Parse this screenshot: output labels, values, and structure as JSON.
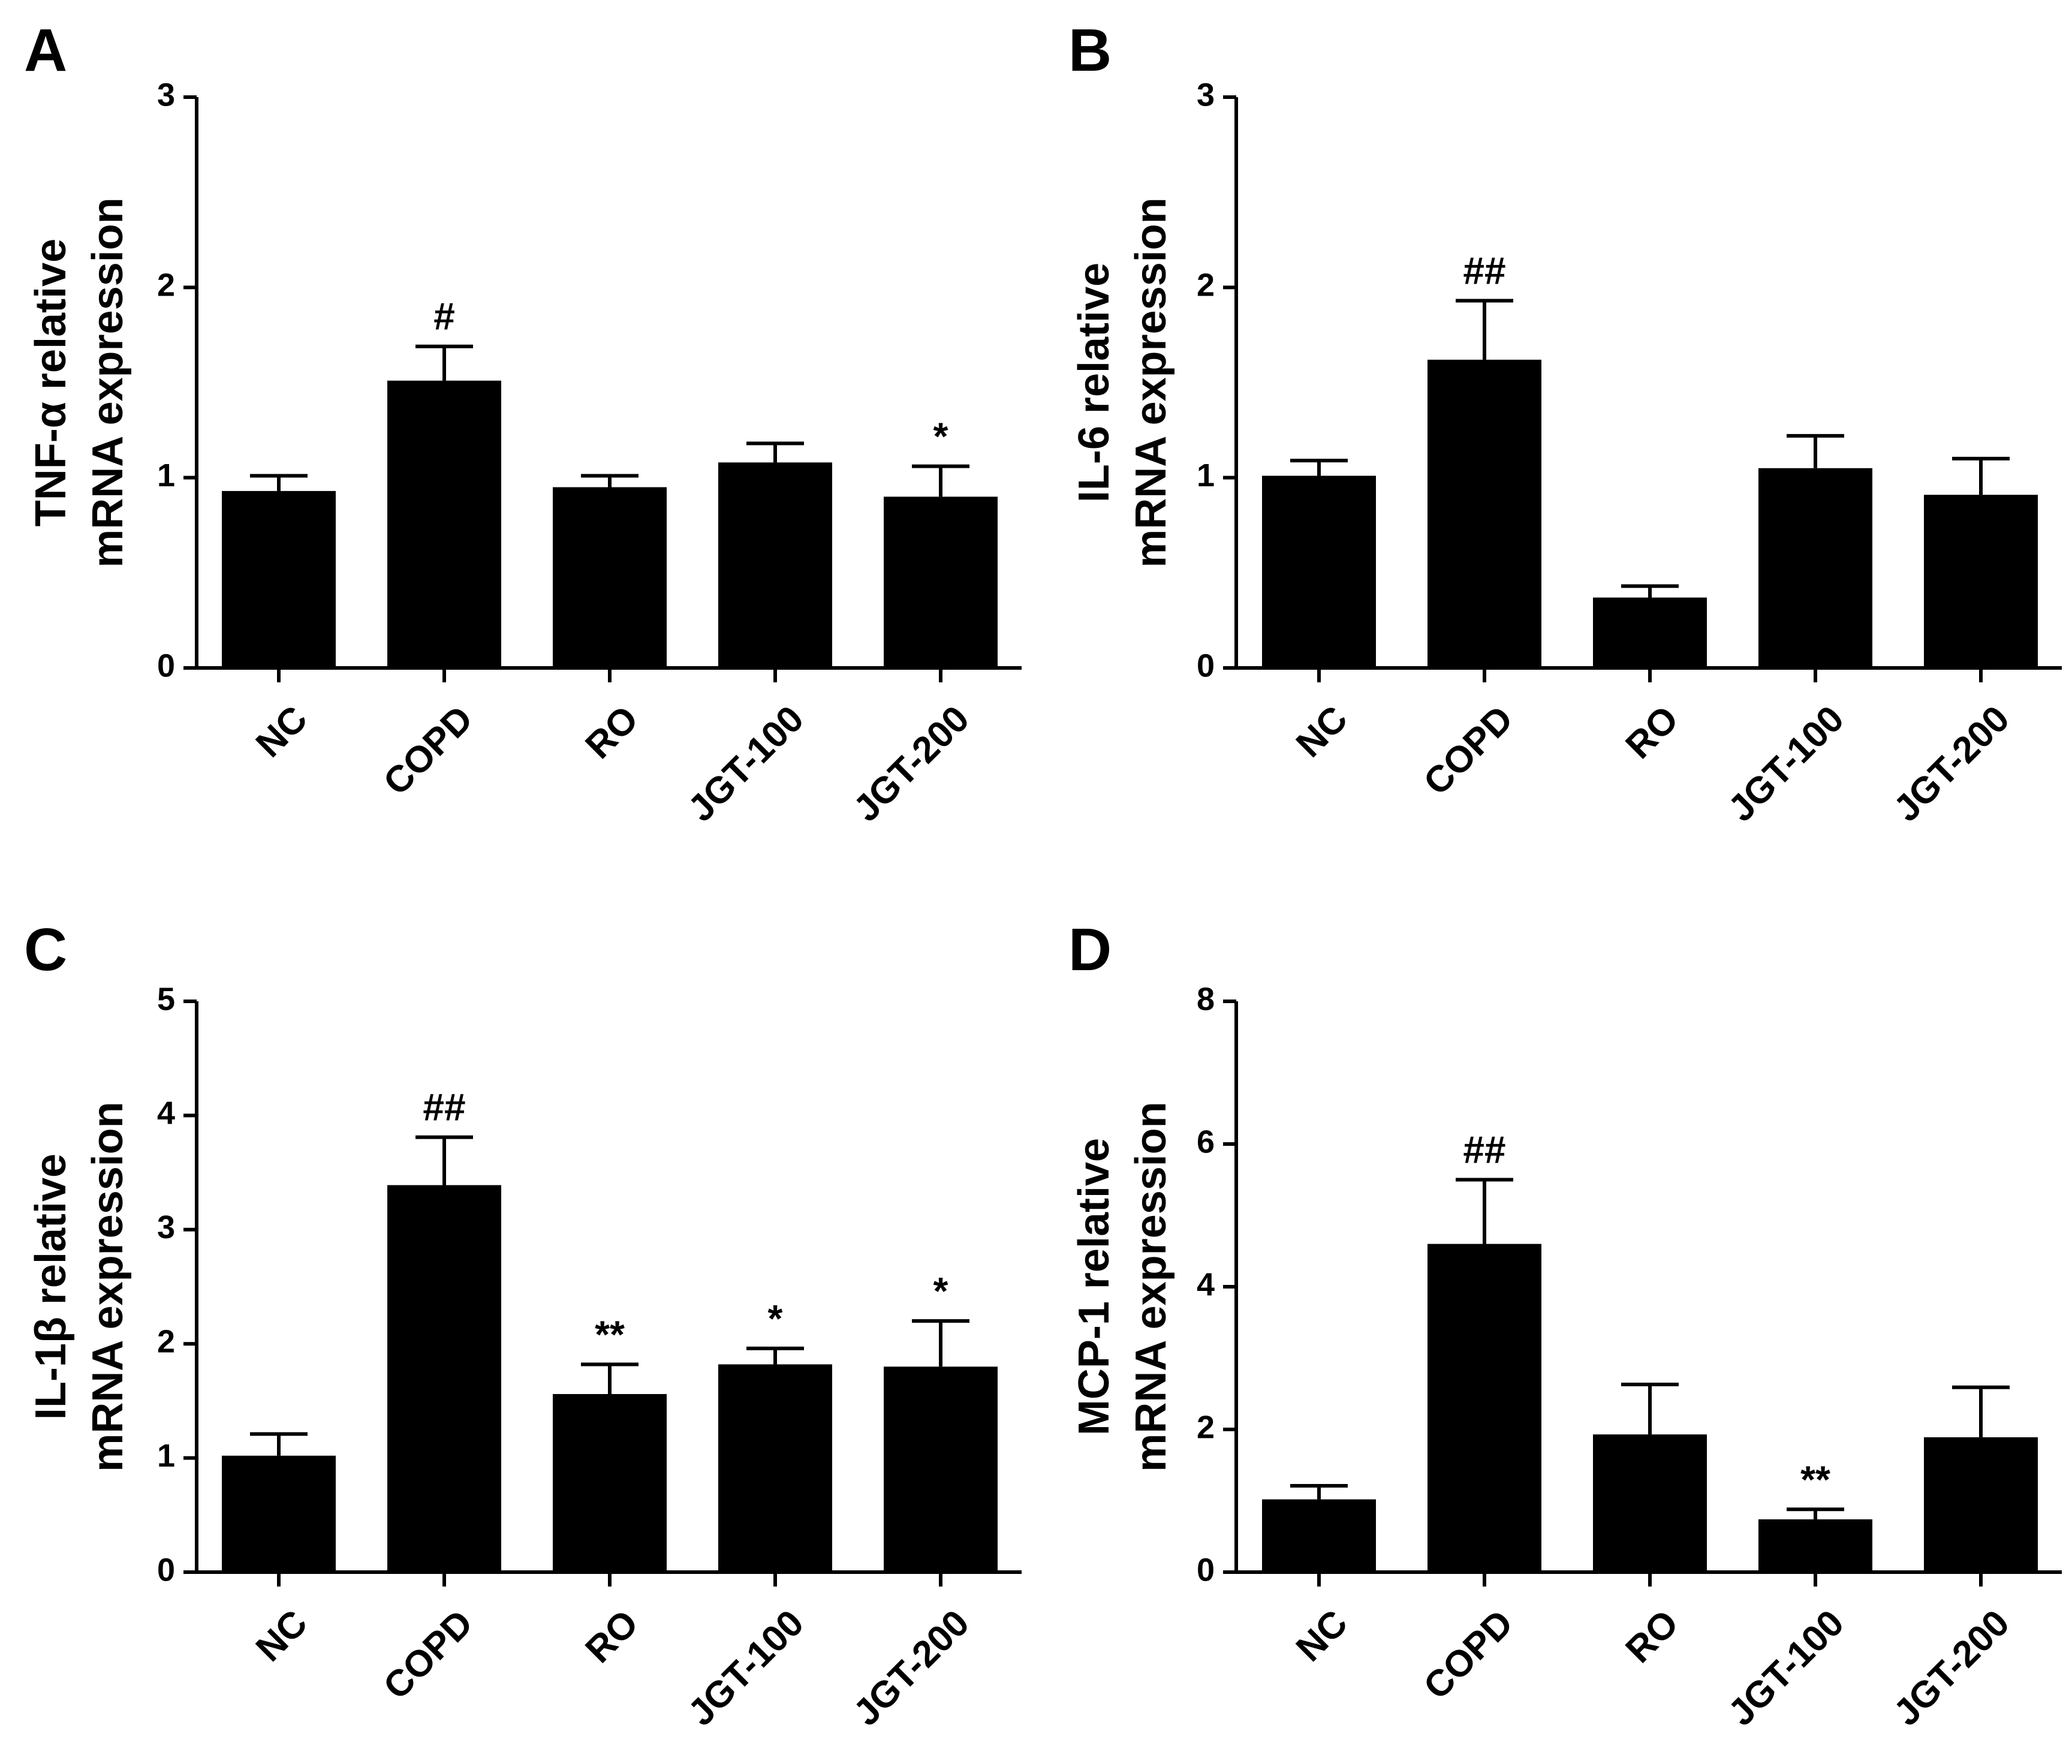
{
  "chart_data": [
    {
      "panel": "A",
      "type": "bar",
      "ylabel": [
        "TNF-α relative",
        "mRNA expression"
      ],
      "ylim": [
        0,
        3
      ],
      "yticks": [
        0,
        1,
        2,
        3
      ],
      "categories": [
        "NC",
        "COPD",
        "RO",
        "JGT-100",
        "JGT-200"
      ],
      "values": [
        0.93,
        1.51,
        0.95,
        1.08,
        0.9
      ],
      "errors": [
        0.08,
        0.18,
        0.06,
        0.1,
        0.16
      ],
      "annotations": [
        "",
        "#",
        "",
        "",
        "*"
      ]
    },
    {
      "panel": "B",
      "type": "bar",
      "ylabel": [
        "IL-6  relative",
        "mRNA expression"
      ],
      "ylim": [
        0,
        3
      ],
      "yticks": [
        0,
        1,
        2,
        3
      ],
      "categories": [
        "NC",
        "COPD",
        "RO",
        "JGT-100",
        "JGT-200"
      ],
      "values": [
        1.01,
        1.62,
        0.37,
        1.05,
        0.91
      ],
      "errors": [
        0.08,
        0.31,
        0.06,
        0.17,
        0.19
      ],
      "annotations": [
        "",
        "##",
        "",
        "",
        ""
      ]
    },
    {
      "panel": "C",
      "type": "bar",
      "ylabel": [
        "IL-1β relative",
        "mRNA expression"
      ],
      "ylim": [
        0,
        5
      ],
      "yticks": [
        0,
        1,
        2,
        3,
        4,
        5
      ],
      "categories": [
        "NC",
        "COPD",
        "RO",
        "JGT-100",
        "JGT-200"
      ],
      "values": [
        1.02,
        3.39,
        1.56,
        1.82,
        1.8
      ],
      "errors": [
        0.19,
        0.42,
        0.26,
        0.14,
        0.4
      ],
      "annotations": [
        "",
        "##",
        "**",
        "*",
        "*"
      ]
    },
    {
      "panel": "D",
      "type": "bar",
      "ylabel": [
        "MCP-1 relative",
        "mRNA expression"
      ],
      "ylim": [
        0,
        8
      ],
      "yticks": [
        0,
        2,
        4,
        6,
        8
      ],
      "categories": [
        "NC",
        "COPD",
        "RO",
        "JGT-100",
        "JGT-200"
      ],
      "values": [
        1.02,
        4.6,
        1.93,
        0.74,
        1.89
      ],
      "errors": [
        0.19,
        0.9,
        0.7,
        0.14,
        0.7
      ],
      "annotations": [
        "",
        "##",
        "",
        "**",
        ""
      ]
    }
  ]
}
